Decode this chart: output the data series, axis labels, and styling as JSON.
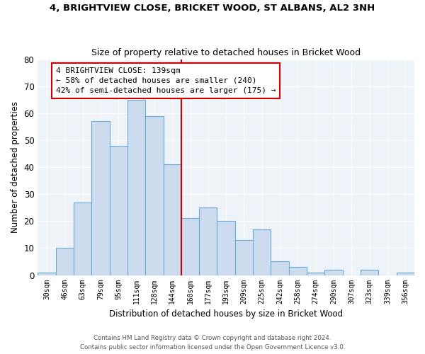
{
  "title1": "4, BRIGHTVIEW CLOSE, BRICKET WOOD, ST ALBANS, AL2 3NH",
  "title2": "Size of property relative to detached houses in Bricket Wood",
  "xlabel": "Distribution of detached houses by size in Bricket Wood",
  "ylabel": "Number of detached properties",
  "categories": [
    "30sqm",
    "46sqm",
    "63sqm",
    "79sqm",
    "95sqm",
    "111sqm",
    "128sqm",
    "144sqm",
    "160sqm",
    "177sqm",
    "193sqm",
    "209sqm",
    "225sqm",
    "242sqm",
    "258sqm",
    "274sqm",
    "290sqm",
    "307sqm",
    "323sqm",
    "339sqm",
    "356sqm"
  ],
  "values": [
    1,
    10,
    27,
    57,
    48,
    65,
    59,
    41,
    21,
    25,
    20,
    13,
    17,
    5,
    3,
    1,
    2,
    0,
    2,
    0,
    1
  ],
  "bar_color": "#ccdcee",
  "bar_edge_color": "#6aaad4",
  "bg_color": "#eef2f9",
  "grid_color": "#ffffff",
  "vline_x": 7.5,
  "vline_color": "#cc0000",
  "annotation_title": "4 BRIGHTVIEW CLOSE: 139sqm",
  "annotation_line1": "← 58% of detached houses are smaller (240)",
  "annotation_line2": "42% of semi-detached houses are larger (175) →",
  "annotation_box_color": "#cc0000",
  "ylim": [
    0,
    80
  ],
  "yticks": [
    0,
    10,
    20,
    30,
    40,
    50,
    60,
    70,
    80
  ],
  "footer1": "Contains HM Land Registry data © Crown copyright and database right 2024.",
  "footer2": "Contains public sector information licensed under the Open Government Licence v3.0."
}
